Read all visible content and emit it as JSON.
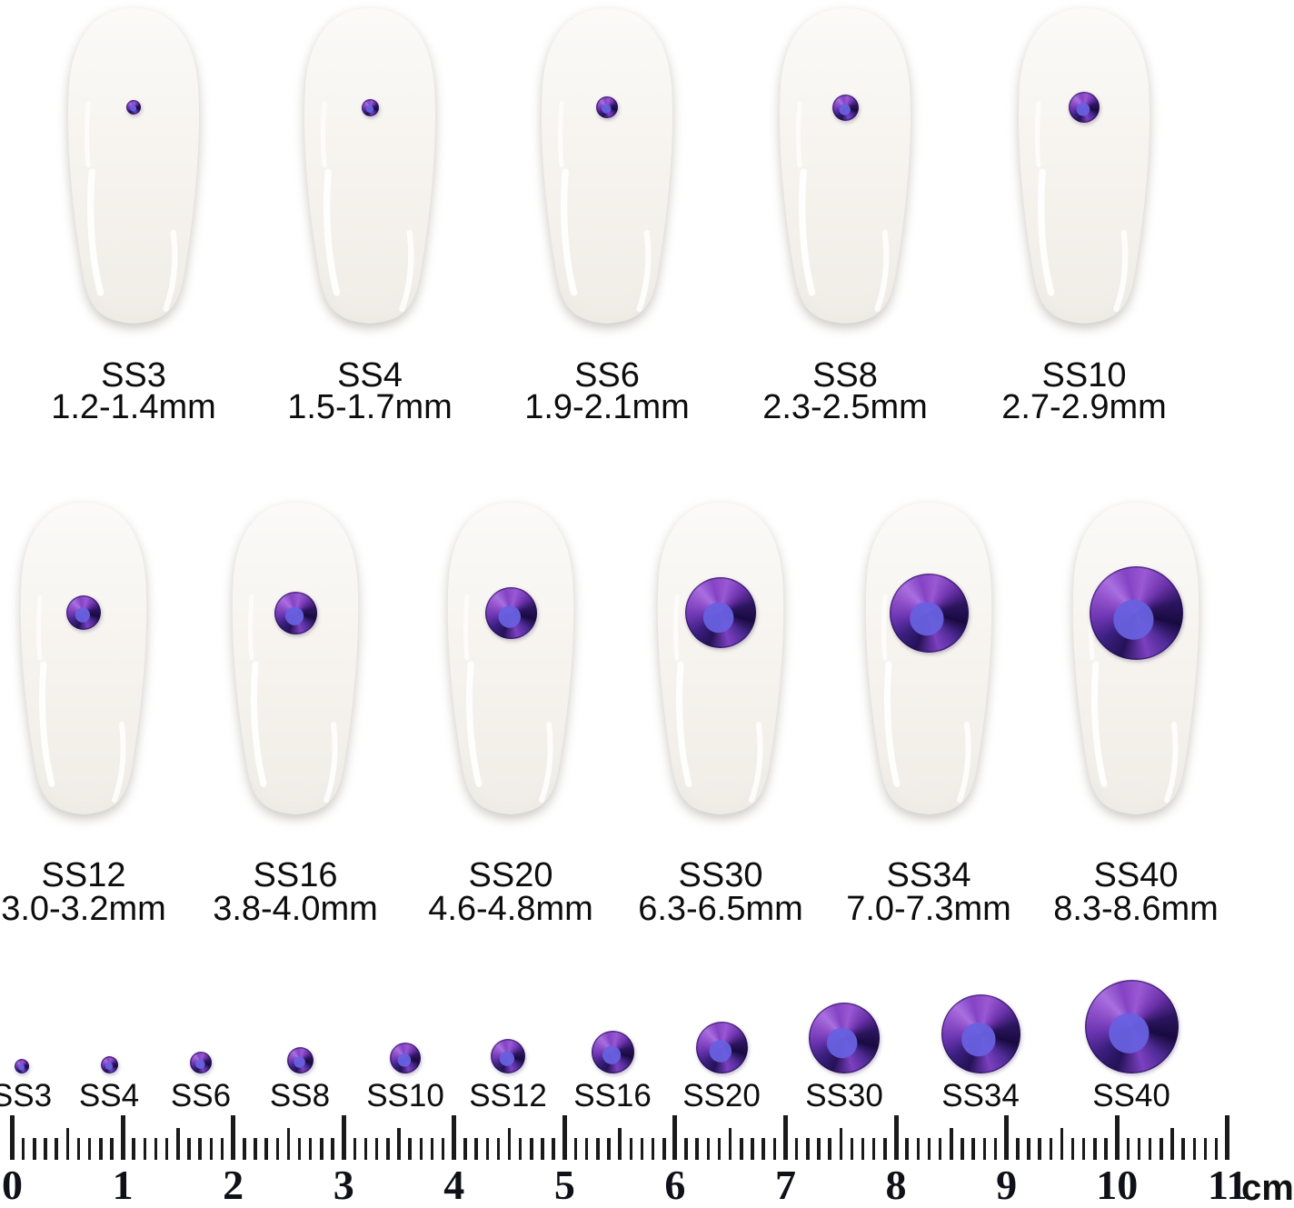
{
  "size_chart": {
    "sizes": [
      {
        "code": "SS3",
        "range": "1.2-1.4mm"
      },
      {
        "code": "SS4",
        "range": "1.5-1.7mm"
      },
      {
        "code": "SS6",
        "range": "1.9-2.1mm"
      },
      {
        "code": "SS8",
        "range": "2.3-2.5mm"
      },
      {
        "code": "SS10",
        "range": "2.7-2.9mm"
      },
      {
        "code": "SS12",
        "range": "3.0-3.2mm"
      },
      {
        "code": "SS16",
        "range": "3.8-4.0mm"
      },
      {
        "code": "SS20",
        "range": "4.6-4.8mm"
      },
      {
        "code": "SS30",
        "range": "6.3-6.5mm"
      },
      {
        "code": "SS34",
        "range": "7.0-7.3mm"
      },
      {
        "code": "SS40",
        "range": "8.3-8.6mm"
      }
    ]
  },
  "ruler": {
    "numbers": [
      "0",
      "1",
      "2",
      "3",
      "4",
      "5",
      "6",
      "7",
      "8",
      "9",
      "10",
      "11"
    ],
    "unit": "cm"
  },
  "colors": {
    "stone_deep": "#241257",
    "stone_violet": "#8a46c6",
    "stone_table_blue": "#6860e0",
    "nail_base": "#f6f3ee"
  }
}
